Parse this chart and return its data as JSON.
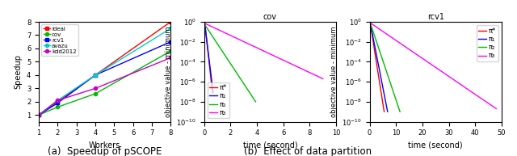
{
  "subplot_a": {
    "xlabel": "Workers",
    "ylabel": "Speedup",
    "caption": "(a)  Speedup of pSCOPE",
    "workers": [
      1,
      2,
      4,
      8
    ],
    "ideal": [
      1,
      2,
      4,
      8
    ],
    "cov": [
      1,
      1.6,
      2.6,
      5.8
    ],
    "rcv1": [
      1,
      1.9,
      4.0,
      6.5
    ],
    "avazu": [
      1,
      2.1,
      4.0,
      7.5
    ],
    "kdd2012": [
      1,
      2.1,
      3.0,
      5.3
    ],
    "colors": {
      "ideal": "#ff0000",
      "cov": "#00bb00",
      "rcv1": "#0000ff",
      "avazu": "#00cccc",
      "kdd2012": "#cc00cc"
    },
    "labels": [
      "Ideal",
      "cov",
      "rcv1",
      "avazu",
      "kdd2012"
    ],
    "datasets": [
      "ideal",
      "cov",
      "rcv1",
      "avazu",
      "kdd2012"
    ],
    "ylim": [
      0.5,
      8
    ],
    "xlim": [
      1,
      8
    ],
    "xticks": [
      1,
      2,
      3,
      4,
      5,
      6,
      7,
      8
    ],
    "yticks": [
      1,
      2,
      3,
      4,
      5,
      6,
      7,
      8
    ]
  },
  "subplot_b": {
    "title": "cov",
    "xlabel": "time (second)",
    "ylabel": "objective value - minimum",
    "caption": "(b)  Effect of data partition",
    "xlim": [
      0,
      10
    ],
    "lines": {
      "pi_star": {
        "color": "#ff0000",
        "label": "π*",
        "x": [
          0.05,
          0.62
        ],
        "y": [
          0.7,
          8e-08
        ]
      },
      "pi_1": {
        "color": "#0000ff",
        "label": "π₁",
        "x": [
          0.05,
          0.68
        ],
        "y": [
          0.5,
          8e-08
        ]
      },
      "pi_2": {
        "color": "#00bb00",
        "label": "π₂",
        "x": [
          0.05,
          3.9
        ],
        "y": [
          0.5,
          1e-08
        ]
      },
      "pi_3": {
        "color": "#ff00ff",
        "label": "π₃",
        "x": [
          0.05,
          9.0
        ],
        "y": [
          0.7,
          2e-06
        ]
      }
    },
    "legend_loc": "lower left"
  },
  "subplot_c": {
    "title": "rcv1",
    "xlabel": "time (second)",
    "ylabel": "objective value - minimum",
    "xlim": [
      0,
      50
    ],
    "lines": {
      "pi_star": {
        "color": "#ff0000",
        "label": "π*",
        "x": [
          0.2,
          5.5
        ],
        "y": [
          0.8,
          1e-09
        ]
      },
      "pi_1": {
        "color": "#0000ff",
        "label": "π₁",
        "x": [
          0.2,
          6.8
        ],
        "y": [
          0.8,
          1e-09
        ]
      },
      "pi_2": {
        "color": "#00bb00",
        "label": "π₂",
        "x": [
          0.2,
          11.5
        ],
        "y": [
          0.8,
          1e-09
        ]
      },
      "pi_3": {
        "color": "#ff00ff",
        "label": "π₃",
        "x": [
          0.2,
          48.0
        ],
        "y": [
          0.8,
          2e-09
        ]
      }
    },
    "legend_loc": "upper right"
  }
}
